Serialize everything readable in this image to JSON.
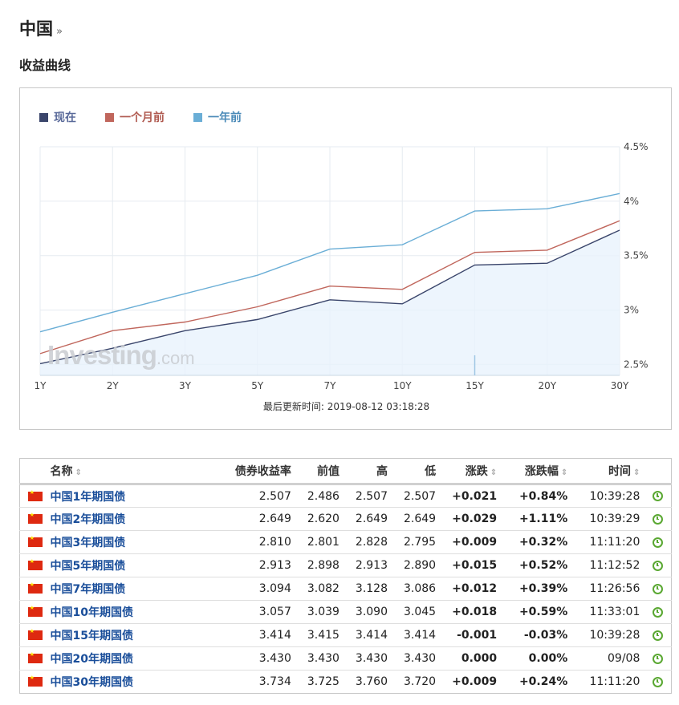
{
  "header": {
    "title": "中国",
    "arrow": "»"
  },
  "section_title": "收益曲线",
  "colors": {
    "now": "#3a456b",
    "one_month": "#c0665c",
    "one_year": "#6aaed6",
    "pos": "#e01010",
    "neg": "#2aa82a"
  },
  "watermark": {
    "brand": "Investing",
    "suffix": ".com"
  },
  "update_time": "最后更新时间: 2019-08-12 03:18:28",
  "chart_data": {
    "type": "line",
    "categories": [
      "1Y",
      "2Y",
      "3Y",
      "5Y",
      "7Y",
      "10Y",
      "15Y",
      "20Y",
      "30Y"
    ],
    "y_ticks": [
      "2.5%",
      "3%",
      "3.5%",
      "4%",
      "4.5%"
    ],
    "ylim": [
      2.4,
      4.5
    ],
    "series": [
      {
        "name": "现在",
        "values": [
          2.507,
          2.649,
          2.81,
          2.913,
          3.094,
          3.057,
          3.414,
          3.43,
          3.734
        ]
      },
      {
        "name": "一个月前",
        "values": [
          2.6,
          2.81,
          2.89,
          3.03,
          3.22,
          3.19,
          3.53,
          3.55,
          3.82
        ]
      },
      {
        "name": "一年前",
        "values": [
          2.8,
          2.98,
          3.15,
          3.32,
          3.56,
          3.6,
          3.91,
          3.93,
          4.07
        ]
      }
    ]
  },
  "table": {
    "headers": {
      "name": "名称",
      "yield": "债券收益率",
      "prev": "前值",
      "high": "高",
      "low": "低",
      "chg": "涨跌",
      "chg_pct": "涨跌幅",
      "time": "时间"
    },
    "sort_glyph": "⇕",
    "rows": [
      {
        "name": "中国1年期国债",
        "yield": "2.507",
        "prev": "2.486",
        "high": "2.507",
        "low": "2.507",
        "chg": "+0.021",
        "chg_pct": "+0.84%",
        "time": "10:39:28",
        "dir": "pos"
      },
      {
        "name": "中国2年期国债",
        "yield": "2.649",
        "prev": "2.620",
        "high": "2.649",
        "low": "2.649",
        "chg": "+0.029",
        "chg_pct": "+1.11%",
        "time": "10:39:29",
        "dir": "pos"
      },
      {
        "name": "中国3年期国债",
        "yield": "2.810",
        "prev": "2.801",
        "high": "2.828",
        "low": "2.795",
        "chg": "+0.009",
        "chg_pct": "+0.32%",
        "time": "11:11:20",
        "dir": "pos"
      },
      {
        "name": "中国5年期国债",
        "yield": "2.913",
        "prev": "2.898",
        "high": "2.913",
        "low": "2.890",
        "chg": "+0.015",
        "chg_pct": "+0.52%",
        "time": "11:12:52",
        "dir": "pos"
      },
      {
        "name": "中国7年期国债",
        "yield": "3.094",
        "prev": "3.082",
        "high": "3.128",
        "low": "3.086",
        "chg": "+0.012",
        "chg_pct": "+0.39%",
        "time": "11:26:56",
        "dir": "pos"
      },
      {
        "name": "中国10年期国债",
        "yield": "3.057",
        "prev": "3.039",
        "high": "3.090",
        "low": "3.045",
        "chg": "+0.018",
        "chg_pct": "+0.59%",
        "time": "11:33:01",
        "dir": "pos"
      },
      {
        "name": "中国15年期国债",
        "yield": "3.414",
        "prev": "3.415",
        "high": "3.414",
        "low": "3.414",
        "chg": "-0.001",
        "chg_pct": "-0.03%",
        "time": "10:39:28",
        "dir": "neg"
      },
      {
        "name": "中国20年期国债",
        "yield": "3.430",
        "prev": "3.430",
        "high": "3.430",
        "low": "3.430",
        "chg": "0.000",
        "chg_pct": "0.00%",
        "time": "09/08",
        "dir": "zero"
      },
      {
        "name": "中国30年期国债",
        "yield": "3.734",
        "prev": "3.725",
        "high": "3.760",
        "low": "3.720",
        "chg": "+0.009",
        "chg_pct": "+0.24%",
        "time": "11:11:20",
        "dir": "pos"
      }
    ]
  }
}
